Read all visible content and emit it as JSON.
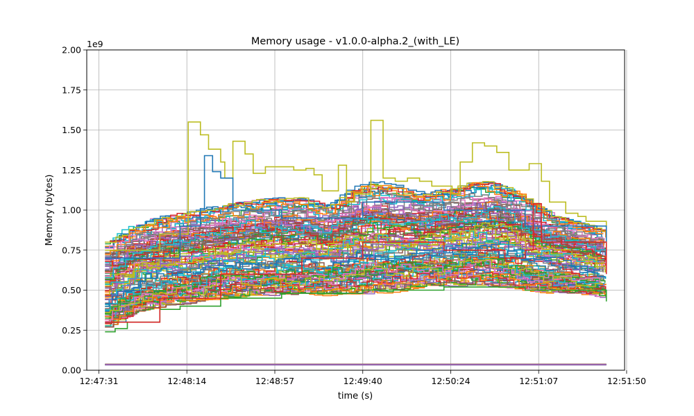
{
  "chart_data": {
    "type": "line",
    "title": "Memory usage  -  v1.0.0-alpha.2_(with_LE)",
    "xlabel": "time (s)",
    "ylabel": "Memory (bytes)",
    "y_multiplier_label": "1e9",
    "xlim_seconds_after_12_47_31": [
      -6,
      259
    ],
    "ylim": [
      0,
      2.0
    ],
    "grid": true,
    "legend": "none",
    "x_ticks": [
      "12:47:31",
      "12:48:14",
      "12:48:57",
      "12:49:40",
      "12:50:24",
      "12:51:07",
      "12:51:50"
    ],
    "y_ticks": [
      "0.00",
      "0.25",
      "0.50",
      "0.75",
      "1.00",
      "1.25",
      "1.50",
      "1.75",
      "2.00"
    ],
    "colors": [
      "#1f77b4",
      "#ff7f0e",
      "#2ca02c",
      "#d62728",
      "#9467bd",
      "#8c564b",
      "#e377c2",
      "#7f7f7f",
      "#bcbd22",
      "#17becf"
    ],
    "series_count_approx": 120,
    "highlighted_series": [
      {
        "color": "#bcbd22",
        "x": [
          3,
          30,
          44,
          46,
          50,
          54,
          60,
          62,
          66,
          72,
          76,
          82,
          90,
          96,
          102,
          106,
          110,
          118,
          122,
          126,
          134,
          136,
          140,
          146,
          152,
          158,
          164,
          174,
          178,
          184,
          190,
          196,
          202,
          212,
          218,
          222,
          230,
          236,
          240,
          250
        ],
        "y": [
          0.75,
          0.85,
          1.55,
          1.55,
          1.47,
          1.38,
          1.3,
          1.2,
          1.43,
          1.35,
          1.23,
          1.27,
          1.27,
          1.25,
          1.26,
          1.22,
          1.12,
          1.28,
          1.05,
          1.1,
          1.56,
          1.56,
          1.2,
          1.18,
          1.2,
          1.18,
          1.15,
          1.1,
          1.3,
          1.42,
          1.4,
          1.36,
          1.25,
          1.29,
          1.18,
          1.05,
          0.98,
          0.96,
          0.93,
          0.88
        ]
      },
      {
        "color": "#1f77b4",
        "x": [
          3,
          40,
          50,
          52,
          56,
          60,
          66,
          90,
          130,
          170,
          210,
          250
        ],
        "y": [
          0.7,
          0.9,
          1.0,
          1.34,
          1.24,
          1.2,
          1.0,
          0.95,
          1.05,
          1.0,
          0.9,
          0.8
        ]
      },
      {
        "color": "#2ca02c",
        "x": [
          3,
          8,
          14,
          30,
          40,
          60,
          90,
          130,
          170,
          210,
          250
        ],
        "y": [
          0.24,
          0.26,
          0.3,
          0.38,
          0.4,
          0.45,
          0.48,
          0.5,
          0.52,
          0.5,
          0.43
        ]
      },
      {
        "color": "#d62728",
        "x": [
          3,
          30,
          60,
          100,
          130,
          170,
          200,
          210,
          214,
          218,
          250
        ],
        "y": [
          0.3,
          0.45,
          0.6,
          0.7,
          0.8,
          0.75,
          0.7,
          0.75,
          1.04,
          0.8,
          0.6
        ]
      },
      {
        "color": "#9467bd",
        "x": [
          3,
          30,
          60,
          100,
          130,
          170,
          200,
          230,
          250
        ],
        "y": [
          0.035,
          0.035,
          0.035,
          0.035,
          0.035,
          0.035,
          0.035,
          0.035,
          0.035
        ]
      }
    ],
    "band": {
      "x": [
        3,
        10,
        20,
        30,
        43,
        60,
        80,
        100,
        110,
        120,
        130,
        140,
        155,
        170,
        185,
        200,
        215,
        230,
        245,
        250
      ],
      "low": [
        0.27,
        0.33,
        0.38,
        0.4,
        0.42,
        0.45,
        0.46,
        0.47,
        0.46,
        0.48,
        0.47,
        0.48,
        0.52,
        0.52,
        0.53,
        0.5,
        0.48,
        0.47,
        0.45,
        0.44
      ],
      "high": [
        0.8,
        0.9,
        0.95,
        0.98,
        1.0,
        1.05,
        1.08,
        1.08,
        1.02,
        1.15,
        1.2,
        1.18,
        1.1,
        1.15,
        1.2,
        1.15,
        1.0,
        0.93,
        0.88,
        0.85
      ]
    }
  }
}
